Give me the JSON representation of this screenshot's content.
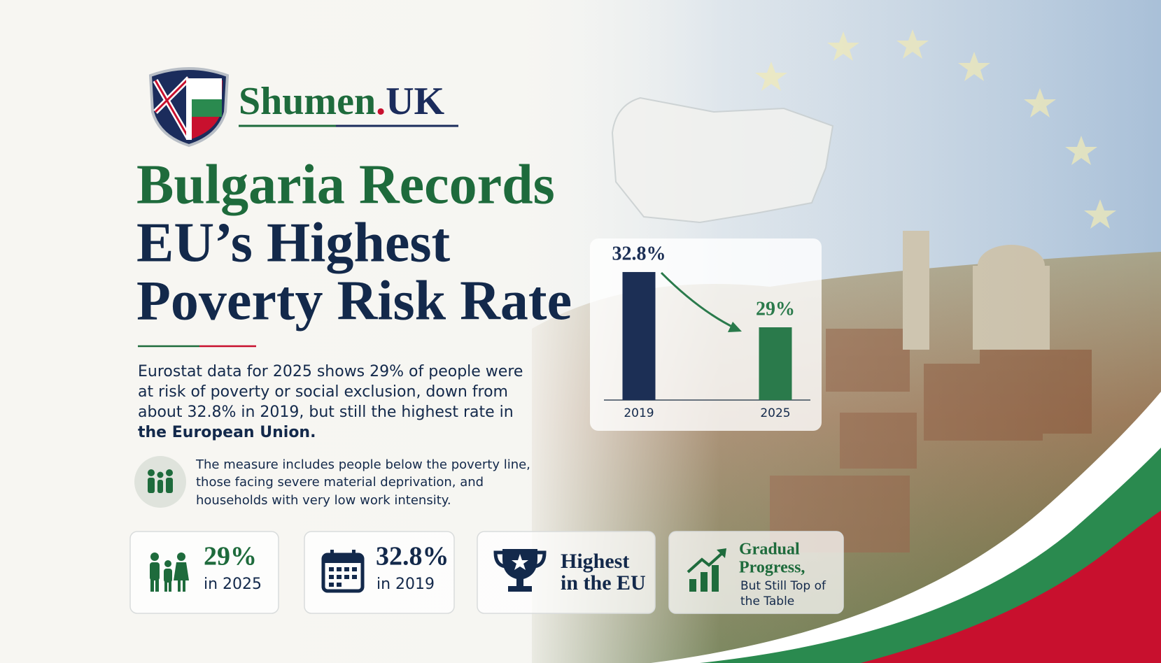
{
  "header": {
    "brand_name": "Shumen",
    "brand_dot": ".",
    "brand_suffix": "UK"
  },
  "headline": {
    "lines": [
      "Bulgaria Records",
      "EU’s Highest",
      "Poverty Risk Rate"
    ]
  },
  "body": {
    "lines": [
      "Eurostat data for 2025 shows 29% of people were",
      "at risk of poverty or social exclusion, down from",
      "about 32.8% in 2019, but still the highest rate in",
      "the European Union."
    ]
  },
  "note": {
    "lines": [
      "The measure includes people below the poverty line,",
      "those facing severe material deprivation, and",
      "households with very low work intensity."
    ]
  },
  "cards": [
    {
      "lines": [
        "29%",
        "in 2025"
      ]
    },
    {
      "lines": [
        "32.8%",
        "in 2019"
      ]
    },
    {
      "lines": [
        "Highest",
        "in the EU"
      ]
    },
    {
      "lines": [
        "Gradual",
        "Progress,",
        "But Still Top of",
        "the Table"
      ]
    }
  ],
  "chart_data": {
    "type": "bar",
    "categories": [
      "2019",
      "2025"
    ],
    "values": [
      32.8,
      29
    ],
    "value_labels": [
      "32.8%",
      "29%"
    ],
    "colors": [
      "#1c2f55",
      "#2a7a4b"
    ],
    "ylim": [
      24,
      34
    ]
  }
}
